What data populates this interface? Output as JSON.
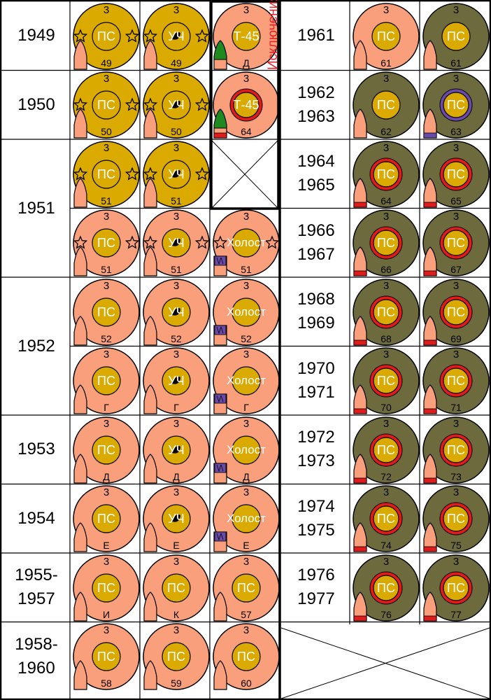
{
  "exception_label": "Исключения",
  "colors": {
    "salmon": "#fa9f7b",
    "gold": "#dbaa00",
    "olive": "#6d6b3d",
    "red": "#e01b1b",
    "blue": "#6a4aa8",
    "green": "#1e8a20"
  },
  "left_rows": [
    {
      "year": "1949",
      "chips": [
        {
          "fill": "gold",
          "top": "3",
          "center": "ПС",
          "bottom": "49",
          "stars": true,
          "tip": "salmon"
        },
        {
          "fill": "gold",
          "top": "3",
          "center": "УЧ",
          "bottom": "49",
          "stars": true,
          "dot": true,
          "tip": "salmon"
        },
        {
          "fill": "salmon",
          "top": "3",
          "center": "Т-45",
          "bottom": "Д",
          "tip": "green"
        }
      ]
    },
    {
      "year": "1950",
      "chips": [
        {
          "fill": "gold",
          "top": "3",
          "center": "ПС",
          "bottom": "50",
          "stars": true,
          "tip": "salmon"
        },
        {
          "fill": "gold",
          "top": "3",
          "center": "УЧ",
          "bottom": "50",
          "stars": true,
          "dot": true,
          "tip": "salmon"
        },
        {
          "fill": "salmon",
          "top": "3",
          "center": "Т-45",
          "bottom": "64",
          "tip": "green",
          "ring": "red",
          "band": "red"
        }
      ]
    },
    {
      "year": "1951",
      "span": 2,
      "chips": [
        {
          "fill": "gold",
          "top": "3",
          "center": "ПС",
          "bottom": "51",
          "stars": true,
          "tip": "salmon"
        },
        {
          "fill": "gold",
          "top": "3",
          "center": "УЧ",
          "bottom": "51",
          "stars": true,
          "dot": true,
          "tip": "salmon"
        }
      ]
    },
    {
      "year": "",
      "chips": [
        {
          "fill": "salmon",
          "top": "3",
          "center": "ПС",
          "bottom": "51",
          "stars": true,
          "tip": "salmon"
        },
        {
          "fill": "salmon",
          "top": "3",
          "center": "УЧ",
          "bottom": "51",
          "stars": true,
          "dot": true,
          "tip": "salmon"
        },
        {
          "fill": "salmon",
          "top": "3",
          "center": "Холост",
          "bottom": "51",
          "stars": true,
          "blank": true
        }
      ]
    },
    {
      "year": "1952",
      "span": 2,
      "chips": [
        {
          "fill": "salmon",
          "top": "3",
          "center": "ПС",
          "bottom": "52",
          "tip": "salmon"
        },
        {
          "fill": "salmon",
          "top": "3",
          "center": "УЧ",
          "bottom": "52",
          "dot": true,
          "tip": "salmon"
        },
        {
          "fill": "salmon",
          "top": "3",
          "center": "Холост",
          "bottom": "52",
          "blank": true
        }
      ]
    },
    {
      "year": "",
      "chips": [
        {
          "fill": "salmon",
          "top": "3",
          "center": "ПС",
          "bottom": "Г",
          "tip": "salmon"
        },
        {
          "fill": "salmon",
          "top": "3",
          "center": "УЧ",
          "bottom": "Г",
          "dot": true,
          "tip": "salmon"
        },
        {
          "fill": "salmon",
          "top": "3",
          "center": "Холост",
          "bottom": "Г",
          "blank": true
        }
      ]
    },
    {
      "year": "1953",
      "chips": [
        {
          "fill": "salmon",
          "top": "3",
          "center": "ПС",
          "bottom": "Д",
          "tip": "salmon"
        },
        {
          "fill": "salmon",
          "top": "3",
          "center": "УЧ",
          "bottom": "Д",
          "dot": true,
          "tip": "salmon"
        },
        {
          "fill": "salmon",
          "top": "3",
          "center": "Холост",
          "bottom": "Д",
          "blank": true
        }
      ]
    },
    {
      "year": "1954",
      "chips": [
        {
          "fill": "salmon",
          "top": "3",
          "center": "ПС",
          "bottom": "Е",
          "tip": "salmon"
        },
        {
          "fill": "salmon",
          "top": "3",
          "center": "УЧ",
          "bottom": "Е",
          "dot": true,
          "tip": "salmon"
        },
        {
          "fill": "salmon",
          "top": "3",
          "center": "Холост",
          "bottom": "Е",
          "blank": true
        }
      ]
    },
    {
      "year": "1955-\n1957",
      "chips": [
        {
          "fill": "salmon",
          "top": "3",
          "center": "ПС",
          "bottom": "И",
          "tip": "salmon"
        },
        {
          "fill": "salmon",
          "top": "3",
          "center": "ПС",
          "bottom": "К",
          "tip": "salmon"
        },
        {
          "fill": "salmon",
          "top": "3",
          "center": "ПС",
          "bottom": "57",
          "tip": "salmon"
        }
      ]
    },
    {
      "year": "1958-\n1960",
      "chips": [
        {
          "fill": "salmon",
          "top": "3",
          "center": "ПС",
          "bottom": "58",
          "tip": "salmon"
        },
        {
          "fill": "salmon",
          "top": "3",
          "center": "ПС",
          "bottom": "59",
          "tip": "salmon"
        },
        {
          "fill": "salmon",
          "top": "3",
          "center": "ПС",
          "bottom": "60",
          "tip": "salmon"
        }
      ]
    }
  ],
  "right_rows": [
    {
      "year": "1961",
      "chips": [
        {
          "fill": "salmon",
          "top": "3",
          "center": "ПС",
          "bottom": "61",
          "tip": "salmon"
        },
        {
          "fill": "olive",
          "top": "3",
          "center": "ПС",
          "bottom": "61",
          "tip": "salmon"
        }
      ]
    },
    {
      "year": "1962\n1963",
      "chips": [
        {
          "fill": "olive",
          "top": "3",
          "center": "ПС",
          "bottom": "62",
          "tip": "salmon"
        },
        {
          "fill": "olive",
          "top": "3",
          "center": "ПС",
          "bottom": "63",
          "tip": "salmon",
          "ring": "blue",
          "band": "blue"
        }
      ]
    },
    {
      "year": "1964\n1965",
      "chips": [
        {
          "fill": "olive",
          "top": "3",
          "center": "ПС",
          "bottom": "64",
          "tip": "salmon",
          "ring": "red",
          "band": "red"
        },
        {
          "fill": "olive",
          "top": "3",
          "center": "ПС",
          "bottom": "65",
          "tip": "salmon",
          "ring": "red",
          "band": "red"
        }
      ]
    },
    {
      "year": "1966\n1967",
      "chips": [
        {
          "fill": "olive",
          "top": "3",
          "center": "ПС",
          "bottom": "66",
          "tip": "salmon",
          "ring": "red",
          "band": "red"
        },
        {
          "fill": "olive",
          "top": "3",
          "center": "ПС",
          "bottom": "67",
          "tip": "salmon",
          "ring": "red",
          "band": "red"
        }
      ]
    },
    {
      "year": "1968\n1969",
      "chips": [
        {
          "fill": "olive",
          "top": "3",
          "center": "ПС",
          "bottom": "68",
          "tip": "salmon",
          "ring": "red",
          "band": "red"
        },
        {
          "fill": "olive",
          "top": "3",
          "center": "ПС",
          "bottom": "69",
          "tip": "salmon",
          "ring": "red",
          "band": "red"
        }
      ]
    },
    {
      "year": "1970\n1971",
      "chips": [
        {
          "fill": "olive",
          "top": "3",
          "center": "ПС",
          "bottom": "70",
          "tip": "salmon",
          "ring": "red",
          "band": "red"
        },
        {
          "fill": "olive",
          "top": "3",
          "center": "ПС",
          "bottom": "71",
          "tip": "salmon",
          "ring": "red",
          "band": "red"
        }
      ]
    },
    {
      "year": "1972\n1973",
      "chips": [
        {
          "fill": "olive",
          "top": "3",
          "center": "ПС",
          "bottom": "72",
          "tip": "salmon",
          "ring": "red",
          "band": "red"
        },
        {
          "fill": "olive",
          "top": "3",
          "center": "ПС",
          "bottom": "73",
          "tip": "salmon",
          "ring": "red",
          "band": "red"
        }
      ]
    },
    {
      "year": "1974\n1975",
      "chips": [
        {
          "fill": "olive",
          "top": "3",
          "center": "ПС",
          "bottom": "74",
          "tip": "salmon",
          "ring": "red",
          "band": "red"
        },
        {
          "fill": "olive",
          "top": "3",
          "center": "ПС",
          "bottom": "75",
          "tip": "salmon",
          "ring": "red",
          "band": "red"
        }
      ]
    },
    {
      "year": "1976\n1977",
      "chips": [
        {
          "fill": "olive",
          "top": "3",
          "center": "ПС",
          "bottom": "76",
          "tip": "salmon",
          "ring": "red",
          "band": "red"
        },
        {
          "fill": "olive",
          "top": "3",
          "center": "ПС",
          "bottom": "77",
          "tip": "salmon",
          "ring": "red",
          "band": "red"
        }
      ]
    }
  ]
}
